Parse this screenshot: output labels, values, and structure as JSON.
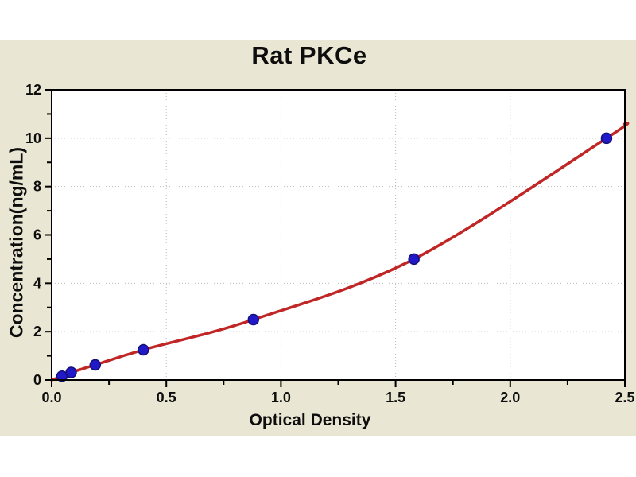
{
  "page": {
    "title": "Rat PKCe",
    "background_color": "#ffffff",
    "panel_color": "#e9e6d3"
  },
  "chart_data": {
    "type": "scatter",
    "title": "Rat PKCe",
    "xlabel": "Optical Density",
    "ylabel": "Concentration(ng/mL)",
    "xlim": [
      0,
      2.5
    ],
    "ylim": [
      0,
      12
    ],
    "x_major_ticks": [
      0,
      0.5,
      1,
      1.5,
      2,
      2.5
    ],
    "x_tick_labels": [
      "0.0",
      "0.5",
      "1.0",
      "1.5",
      "2.0",
      "2.5"
    ],
    "x_minor_ticks": [
      0.25,
      0.75,
      1.25,
      1.75,
      2.25
    ],
    "y_major_ticks": [
      0,
      2,
      4,
      6,
      8,
      10,
      12
    ],
    "y_tick_labels": [
      "0",
      "2",
      "4",
      "6",
      "8",
      "10",
      "12"
    ],
    "y_minor_ticks": [
      1,
      3,
      5,
      7,
      9,
      11
    ],
    "grid": {
      "show": true,
      "style": "dotted",
      "color": "#b9b9b9"
    },
    "legend": null,
    "plot_bg_color": "#ffffff",
    "frame_color": "#000000",
    "series": [
      {
        "name": "standards",
        "type": "scatter",
        "marker": "circle",
        "color": "#2118c8",
        "edge_color": "#141077",
        "points": [
          {
            "x": 0.045,
            "y": 0.156
          },
          {
            "x": 0.085,
            "y": 0.312
          },
          {
            "x": 0.19,
            "y": 0.625
          },
          {
            "x": 0.4,
            "y": 1.25
          },
          {
            "x": 0.88,
            "y": 2.5
          },
          {
            "x": 1.58,
            "y": 5.0
          },
          {
            "x": 2.42,
            "y": 10.0
          }
        ]
      },
      {
        "name": "fitted-curve",
        "type": "line",
        "color": "#c02626",
        "points": [
          {
            "x": 0,
            "y": 0
          },
          {
            "x": 0.045,
            "y": 0.156
          },
          {
            "x": 0.085,
            "y": 0.312
          },
          {
            "x": 0.19,
            "y": 0.625
          },
          {
            "x": 0.4,
            "y": 1.25
          },
          {
            "x": 0.88,
            "y": 2.5
          },
          {
            "x": 1.58,
            "y": 5.0
          },
          {
            "x": 2.42,
            "y": 10.0
          },
          {
            "x": 2.5,
            "y": 10.6
          }
        ]
      }
    ]
  }
}
